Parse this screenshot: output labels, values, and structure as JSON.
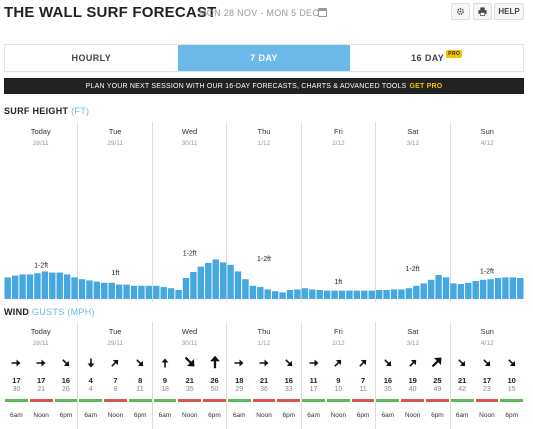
{
  "header": {
    "title": "THE WALL SURF FORECAST",
    "dates": "MON 28 NOV - MON 5 DEC",
    "help_label": "HELP"
  },
  "tabs": [
    {
      "label": "HOURLY",
      "active": false
    },
    {
      "label": "7 DAY",
      "active": true
    },
    {
      "label": "16 DAY",
      "active": false,
      "badge": "PRO"
    }
  ],
  "banner": {
    "text": "PLAN YOUR NEXT SESSION WITH OUR 16-DAY FORECASTS, CHARTS & ADVANCED TOOLS",
    "cta": "GET PRO"
  },
  "surf": {
    "label": "SURF HEIGHT",
    "unit": "(FT)",
    "days": [
      {
        "name": "Today",
        "date": "28/11",
        "range": "1-2ft"
      },
      {
        "name": "Tue",
        "date": "29/11",
        "range": "1ft"
      },
      {
        "name": "Wed",
        "date": "30/11",
        "range": "1-2ft"
      },
      {
        "name": "Thu",
        "date": "1/12",
        "range": "1-2ft"
      },
      {
        "name": "Fri",
        "date": "2/12",
        "range": "1ft"
      },
      {
        "name": "Sat",
        "date": "3/12",
        "range": "1-2ft"
      },
      {
        "name": "Sun",
        "date": "4/12",
        "range": "1-2ft"
      }
    ],
    "bar_color": "#46a8e0",
    "max_value": 1
  },
  "chart_data": {
    "type": "bar",
    "ylabel": "SURF HEIGHT (FT)",
    "values": [
      0.36,
      0.39,
      0.41,
      0.41,
      0.43,
      0.46,
      0.44,
      0.44,
      0.41,
      0.36,
      0.33,
      0.31,
      0.29,
      0.27,
      0.27,
      0.24,
      0.24,
      0.22,
      0.22,
      0.22,
      0.22,
      0.2,
      0.18,
      0.15,
      0.35,
      0.45,
      0.54,
      0.6,
      0.66,
      0.61,
      0.57,
      0.46,
      0.33,
      0.22,
      0.2,
      0.16,
      0.13,
      0.11,
      0.15,
      0.16,
      0.18,
      0.16,
      0.15,
      0.14,
      0.14,
      0.14,
      0.14,
      0.14,
      0.14,
      0.14,
      0.15,
      0.15,
      0.16,
      0.16,
      0.18,
      0.22,
      0.26,
      0.32,
      0.4,
      0.36,
      0.26,
      0.25,
      0.27,
      0.3,
      0.32,
      0.33,
      0.35,
      0.36,
      0.36,
      0.35
    ]
  },
  "wind": {
    "label": "WIND",
    "unit": "GUSTS (MPH)",
    "cells": [
      {
        "dir": 0,
        "speed": "17",
        "gust": "30",
        "big": false
      },
      {
        "dir": 0,
        "speed": "17",
        "gust": "21",
        "big": false
      },
      {
        "dir": 45,
        "speed": "16",
        "gust": "26",
        "big": false
      },
      {
        "dir": 90,
        "speed": "4",
        "gust": "4",
        "big": false
      },
      {
        "dir": -45,
        "speed": "7",
        "gust": "8",
        "big": false
      },
      {
        "dir": 45,
        "speed": "8",
        "gust": "11",
        "big": false
      },
      {
        "dir": -90,
        "speed": "9",
        "gust": "18",
        "big": false
      },
      {
        "dir": 45,
        "speed": "21",
        "gust": "35",
        "big": true
      },
      {
        "dir": -90,
        "speed": "26",
        "gust": "50",
        "big": true
      },
      {
        "dir": 0,
        "speed": "18",
        "gust": "29",
        "big": false
      },
      {
        "dir": 0,
        "speed": "21",
        "gust": "36",
        "big": false
      },
      {
        "dir": 45,
        "speed": "16",
        "gust": "33",
        "big": false
      },
      {
        "dir": 0,
        "speed": "11",
        "gust": "17",
        "big": false
      },
      {
        "dir": -45,
        "speed": "9",
        "gust": "10",
        "big": false
      },
      {
        "dir": -45,
        "speed": "7",
        "gust": "11",
        "big": false
      },
      {
        "dir": 45,
        "speed": "16",
        "gust": "35",
        "big": false
      },
      {
        "dir": -45,
        "speed": "19",
        "gust": "40",
        "big": false
      },
      {
        "dir": -45,
        "speed": "25",
        "gust": "49",
        "big": true
      },
      {
        "dir": 45,
        "speed": "21",
        "gust": "42",
        "big": false
      },
      {
        "dir": 45,
        "speed": "17",
        "gust": "23",
        "big": false
      },
      {
        "dir": 45,
        "speed": "10",
        "gust": "15",
        "big": false
      }
    ],
    "times": [
      "6am",
      "Noon",
      "6pm"
    ],
    "tide_colors": [
      "#5cb85c",
      "#d9534f",
      "#5cb85c",
      "#5cb85c",
      "#d9534f",
      "#5cb85c",
      "#5cb85c",
      "#d9534f",
      "#d9534f",
      "#5cb85c",
      "#d9534f",
      "#d9534f",
      "#5cb85c",
      "#5cb85c",
      "#d9534f",
      "#5cb85c",
      "#d9534f",
      "#d9534f",
      "#5cb85c",
      "#d9534f",
      "#5cb85c"
    ]
  }
}
